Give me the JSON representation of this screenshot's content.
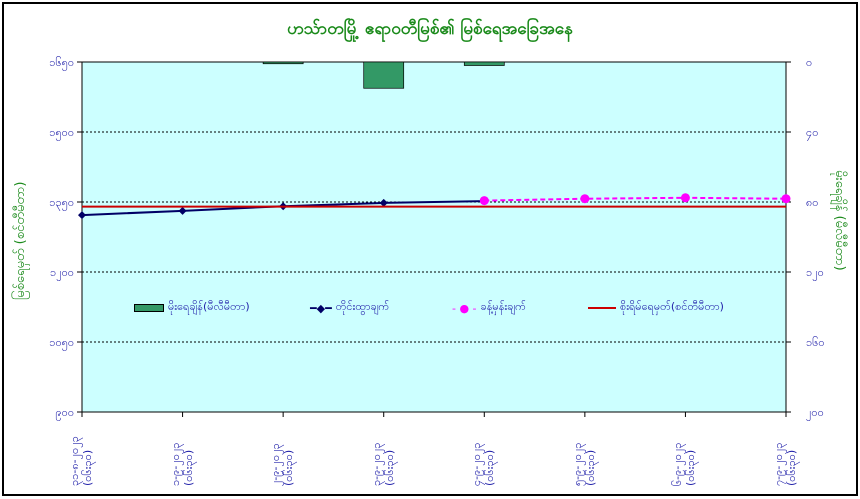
{
  "chart_data": {
    "type": "bar+line",
    "title": "ဟသ်ာတမြို့ ဧရာဝတီမြစ်၏ မြစ်ရေအခြေအနေ",
    "ylabel": "မြစ်ရေမှတ် (စင်တီမီတာ)",
    "y2label": "မိုးရေချိန် (မီလီမီတာ)",
    "ylim": [
      900,
      1650
    ],
    "y2lim": [
      200,
      0
    ],
    "yticks": [
      {
        "v": 1650,
        "label": "၁၆၅၀"
      },
      {
        "v": 1500,
        "label": "၁၅၀၀"
      },
      {
        "v": 1350,
        "label": "၁၃၅၀"
      },
      {
        "v": 1200,
        "label": "၁၂၀၀"
      },
      {
        "v": 1050,
        "label": "၁၀၅၀"
      },
      {
        "v": 900,
        "label": "၉၀၀"
      }
    ],
    "y2ticks": [
      {
        "v": 0,
        "label": "၀"
      },
      {
        "v": 40,
        "label": "၄၀"
      },
      {
        "v": 80,
        "label": "၈၀"
      },
      {
        "v": 120,
        "label": "၁၂၀"
      },
      {
        "v": 160,
        "label": "၁၆၀"
      },
      {
        "v": 200,
        "label": "၂၀၀"
      }
    ],
    "categories": [
      [
        "၃၁-၈-၂၀၂၃",
        "(၀၆း၃၀)"
      ],
      [
        "၁-၉-၂၀၂၃",
        "(၀၆း၃၀)"
      ],
      [
        "၂-၉-၂၀၂၃",
        "(၀၆း၃၀)"
      ],
      [
        "၃-၉-၂၀၂၃",
        "(၀၆း၃၀)"
      ],
      [
        "၄-၉-၂၀၂၃",
        "(၀၆း၃၀)"
      ],
      [
        "၅-၉-၂၀၂၃",
        "(၀၆း၃၀)"
      ],
      [
        "၆-၉-၂၀၂၃",
        "(၀၆း၃၀)"
      ],
      [
        "၇-၉-၂၀၂၃",
        "(၀၆း၃၀)"
      ]
    ],
    "series": [
      {
        "name": "မိုးရေချိန်(မီလီမီတာ)",
        "type": "bar",
        "axis": "right",
        "color": "#339966",
        "values": [
          0,
          0,
          1,
          15,
          2,
          null,
          null,
          null
        ]
      },
      {
        "name": "တိုင်းထွာချက်",
        "type": "line",
        "axis": "left",
        "color": "#000066",
        "values": [
          1322,
          1331,
          1341,
          1348,
          1352,
          null,
          null,
          null
        ]
      },
      {
        "name": "ခန့်မှန်းချက်",
        "type": "line-dashed",
        "axis": "left",
        "color": "#ff00ff",
        "values": [
          null,
          null,
          null,
          null,
          1353,
          1357,
          1359,
          1357
        ]
      },
      {
        "name": "စိုးရိမ်ရေမှတ်(စင်တီမီတာ)",
        "type": "hline",
        "axis": "left",
        "color": "#cc0000",
        "values": [
          1340,
          1340,
          1340,
          1340,
          1340,
          1340,
          1340,
          1340
        ]
      }
    ],
    "grid": true,
    "legend": "center"
  }
}
